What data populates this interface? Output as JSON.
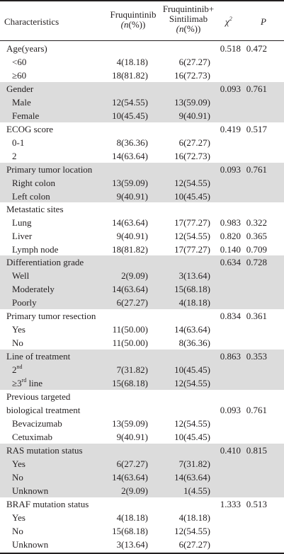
{
  "header": {
    "characteristics": "Characteristics",
    "group1_name": "Fruquintinib",
    "group1_unit": "(n(%))",
    "group2_name_line1": "Fruquintinib+",
    "group2_name_line2": "Sintilimab",
    "group2_unit": "(n(%))",
    "chi": "χ",
    "chi_sup": "2",
    "p": "P"
  },
  "rows": [
    {
      "label": "Age(years)",
      "sub": false,
      "f": "",
      "fs": "",
      "chi": "0.518",
      "p": "0.472"
    },
    {
      "label": "<60",
      "sub": true,
      "f": "4(18.18)",
      "fs": "6(27.27)",
      "chi": "",
      "p": ""
    },
    {
      "label": "≥60",
      "sub": true,
      "f": "18(81.82)",
      "fs": "16(72.73)",
      "chi": "",
      "p": ""
    },
    {
      "label": "Gender",
      "sub": false,
      "f": "",
      "fs": "",
      "chi": "0.093",
      "p": "0.761"
    },
    {
      "label": "Male",
      "sub": true,
      "f": "12(54.55)",
      "fs": "13(59.09)",
      "chi": "",
      "p": ""
    },
    {
      "label": "Female",
      "sub": true,
      "f": "10(45.45)",
      "fs": "9(40.91)",
      "chi": "",
      "p": ""
    },
    {
      "label": "ECOG  score",
      "sub": false,
      "f": "",
      "fs": "",
      "chi": "0.419",
      "p": "0.517"
    },
    {
      "label": "0-1",
      "sub": true,
      "f": "8(36.36)",
      "fs": "6(27.27)",
      "chi": "",
      "p": ""
    },
    {
      "label": "2",
      "sub": true,
      "f": "14(63.64)",
      "fs": "16(72.73)",
      "chi": "",
      "p": ""
    },
    {
      "label": "Primary tumor location",
      "sub": false,
      "f": "",
      "fs": "",
      "chi": "0.093",
      "p": "0.761"
    },
    {
      "label": "Right colon",
      "sub": true,
      "f": "13(59.09)",
      "fs": "12(54.55)",
      "chi": "",
      "p": ""
    },
    {
      "label": "Left colon",
      "sub": true,
      "f": "9(40.91)",
      "fs": "10(45.45)",
      "chi": "",
      "p": ""
    },
    {
      "label": "Metastatic sites",
      "sub": false,
      "f": "",
      "fs": "",
      "chi": "",
      "p": ""
    },
    {
      "label": "Lung",
      "sub": true,
      "f": "14(63.64)",
      "fs": "17(77.27)",
      "chi": "0.983",
      "p": "0.322"
    },
    {
      "label": "Liver",
      "sub": true,
      "f": "9(40.91)",
      "fs": "12(54.55)",
      "chi": "0.820",
      "p": "0.365"
    },
    {
      "label": "Lymph node",
      "sub": true,
      "f": "18(81.82)",
      "fs": "17(77.27)",
      "chi": "0.140",
      "p": "0.709"
    },
    {
      "label": "Differentiation grade",
      "sub": false,
      "f": "",
      "fs": "",
      "chi": "0.634",
      "p": "0.728"
    },
    {
      "label": "Well",
      "sub": true,
      "f": "2(9.09)",
      "fs": "3(13.64)",
      "chi": "",
      "p": ""
    },
    {
      "label": "Moderately",
      "sub": true,
      "f": "14(63.64)",
      "fs": "15(68.18)",
      "chi": "",
      "p": ""
    },
    {
      "label": "Poorly",
      "sub": true,
      "f": "6(27.27)",
      "fs": "4(18.18)",
      "chi": "",
      "p": ""
    },
    {
      "label": "Primary tumor resection",
      "sub": false,
      "f": "",
      "fs": "",
      "chi": "0.834",
      "p": "0.361"
    },
    {
      "label": "Yes",
      "sub": true,
      "f": "11(50.00)",
      "fs": "14(63.64)",
      "chi": "",
      "p": ""
    },
    {
      "label": "No",
      "sub": true,
      "f": "11(50.00)",
      "fs": "8(36.36)",
      "chi": "",
      "p": ""
    },
    {
      "label": "Line of treatment",
      "sub": false,
      "f": "",
      "fs": "",
      "chi": "0.863",
      "p": "0.353"
    },
    {
      "label": "2",
      "sup": "nd",
      "sub": true,
      "f": "7(31.82)",
      "fs": "10(45.45)",
      "chi": "",
      "p": ""
    },
    {
      "label": "≥3",
      "sup": "rd",
      "suffix": " line",
      "sub": true,
      "f": "15(68.18)",
      "fs": "12(54.55)",
      "chi": "",
      "p": ""
    },
    {
      "label": "Previous targeted",
      "sub": false,
      "f": "",
      "fs": "",
      "chi": "",
      "p": ""
    },
    {
      "label": "biological treatment",
      "sub": false,
      "f": "",
      "fs": "",
      "chi": "0.093",
      "p": "0.761"
    },
    {
      "label": "Bevacizumab",
      "sub": true,
      "f": "13(59.09)",
      "fs": "12(54.55)",
      "chi": "",
      "p": ""
    },
    {
      "label": "Cetuximab",
      "sub": true,
      "f": "9(40.91)",
      "fs": "10(45.45)",
      "chi": "",
      "p": ""
    },
    {
      "label": "RAS mutation status",
      "sub": false,
      "f": "",
      "fs": "",
      "chi": "0.410",
      "p": "0.815"
    },
    {
      "label": "Yes",
      "sub": true,
      "f": "6(27.27)",
      "fs": "7(31.82)",
      "chi": "",
      "p": ""
    },
    {
      "label": "No",
      "sub": true,
      "f": "14(63.64)",
      "fs": "14(63.64)",
      "chi": "",
      "p": ""
    },
    {
      "label": "Unknown",
      "sub": true,
      "f": "2(9.09)",
      "fs": "1(4.55)",
      "chi": "",
      "p": ""
    },
    {
      "label": "BRAF mutation status",
      "sub": false,
      "f": "",
      "fs": "",
      "chi": "1.333",
      "p": "0.513"
    },
    {
      "label": "Yes",
      "sub": true,
      "f": "4(18.18)",
      "fs": "4(18.18)",
      "chi": "",
      "p": ""
    },
    {
      "label": "No",
      "sub": true,
      "f": "15(68.18)",
      "fs": "12(54.55)",
      "chi": "",
      "p": ""
    },
    {
      "label": "Unknown",
      "sub": true,
      "f": "3(13.64)",
      "fs": "6(27.27)",
      "chi": "",
      "p": ""
    }
  ],
  "shading": [
    "#dcdcdc",
    "#ffffff"
  ]
}
